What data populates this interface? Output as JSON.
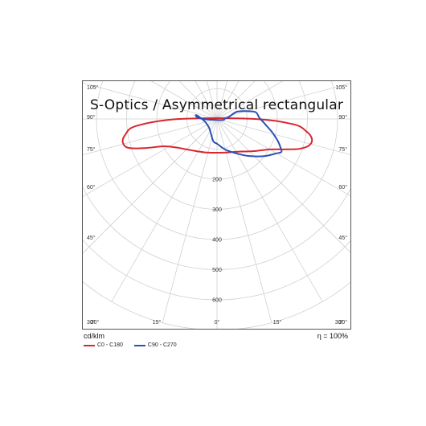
{
  "chart_data": {
    "type": "polar",
    "title": "S-Optics / Asymmetrical rectangular",
    "unit_label": "cd/klm",
    "efficiency": "η = 100%",
    "radial_ticks": [
      200,
      300,
      400,
      500,
      600
    ],
    "radial_max": 700,
    "angle_labels_left": [
      "105°",
      "90°",
      "75°",
      "60°",
      "45°",
      "30°"
    ],
    "angle_labels_right": [
      "105°",
      "90°",
      "75°",
      "60°",
      "45°",
      "30°"
    ],
    "angle_labels_bottom": [
      "30°",
      "15°",
      "0°",
      "15°",
      "30°"
    ],
    "colors": {
      "c0": "#d9262e",
      "c90": "#2c4fb5"
    },
    "series": [
      {
        "name": "C0 - C180",
        "color": "#d9262e",
        "points": [
          [
            -90,
            125
          ],
          [
            -85,
            270
          ],
          [
            -80,
            310
          ],
          [
            -76,
            322
          ],
          [
            -72,
            310
          ],
          [
            -68,
            258
          ],
          [
            -63,
            200
          ],
          [
            -55,
            165
          ],
          [
            -40,
            135
          ],
          [
            -20,
            118
          ],
          [
            0,
            112
          ],
          [
            20,
            118
          ],
          [
            32,
            128
          ],
          [
            48,
            160
          ],
          [
            60,
            202
          ],
          [
            66,
            248
          ],
          [
            70,
            290
          ],
          [
            74,
            318
          ],
          [
            78,
            322
          ],
          [
            82,
            300
          ],
          [
            86,
            255
          ],
          [
            90,
            125
          ]
        ]
      },
      {
        "name": "C90 - C270",
        "color": "#2c4fb5",
        "points": [
          [
            -80,
            15
          ],
          [
            -90,
            48
          ],
          [
            -95,
            65
          ],
          [
            -100,
            72
          ],
          [
            -97,
            60
          ],
          [
            -75,
            40
          ],
          [
            -40,
            40
          ],
          [
            -10,
            74
          ],
          [
            0,
            82
          ],
          [
            15,
            105
          ],
          [
            28,
            128
          ],
          [
            40,
            160
          ],
          [
            52,
            200
          ],
          [
            60,
            228
          ],
          [
            63,
            240
          ],
          [
            66,
            230
          ],
          [
            70,
            215
          ],
          [
            76,
            190
          ],
          [
            84,
            160
          ],
          [
            92,
            140
          ],
          [
            100,
            130
          ],
          [
            105,
            100
          ],
          [
            110,
            70
          ],
          [
            100,
            40
          ],
          [
            90,
            25
          ],
          [
            80,
            20
          ]
        ]
      }
    ]
  }
}
